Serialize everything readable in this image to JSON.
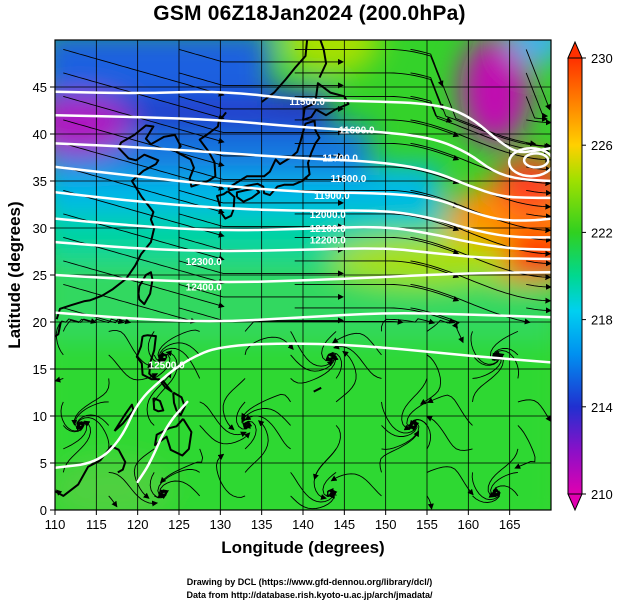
{
  "title": "GSM 06Z18Jan2024 (200.0hPa)",
  "credits": [
    "Drawing by DCL (https://www.gfd-dennou.org/library/dcl/)",
    "Data from http://database.rish.kyoto-u.ac.jp/arch/jmadata/"
  ],
  "chart_data": {
    "type": "heatmap",
    "title": "GSM 06Z18Jan2024 (200.0hPa)",
    "xlabel": "Longitude (degrees)",
    "ylabel": "Latitude  (degrees)",
    "xlim": [
      110,
      170
    ],
    "ylim": [
      0,
      50
    ],
    "x_ticks": [
      "110",
      "115",
      "120",
      "125",
      "130",
      "135",
      "140",
      "145",
      "150",
      "155",
      "160",
      "165"
    ],
    "y_ticks": [
      "0",
      "5",
      "10",
      "15",
      "20",
      "25",
      "30",
      "35",
      "40",
      "45"
    ],
    "grid": true,
    "colorbar": {
      "min": 210,
      "max": 230,
      "tick_labels": [
        "210",
        "214",
        "218",
        "222",
        "226",
        "230"
      ],
      "colors": [
        "#e000b0",
        "#2030d0",
        "#00c8ff",
        "#30d020",
        "#ffd000",
        "#ff3000"
      ]
    },
    "contour_labels": [
      {
        "text": "11500.0",
        "lon": 140.5,
        "lat": 43.5
      },
      {
        "text": "11600.0",
        "lon": 146.5,
        "lat": 40.5
      },
      {
        "text": "11700.0",
        "lon": 144.5,
        "lat": 37.5
      },
      {
        "text": "11800.0",
        "lon": 145.5,
        "lat": 35.3
      },
      {
        "text": "11900.0",
        "lon": 143.5,
        "lat": 33.5
      },
      {
        "text": "12000.0",
        "lon": 143,
        "lat": 31.5
      },
      {
        "text": "12100.0",
        "lon": 143,
        "lat": 30
      },
      {
        "text": "12200.0",
        "lon": 143,
        "lat": 28.8
      },
      {
        "text": "12300.0",
        "lon": 128,
        "lat": 26.5
      },
      {
        "text": "12400.0",
        "lon": 128,
        "lat": 23.8
      },
      {
        "text": "12500.0",
        "lon": 123.5,
        "lat": 15.5
      }
    ]
  }
}
